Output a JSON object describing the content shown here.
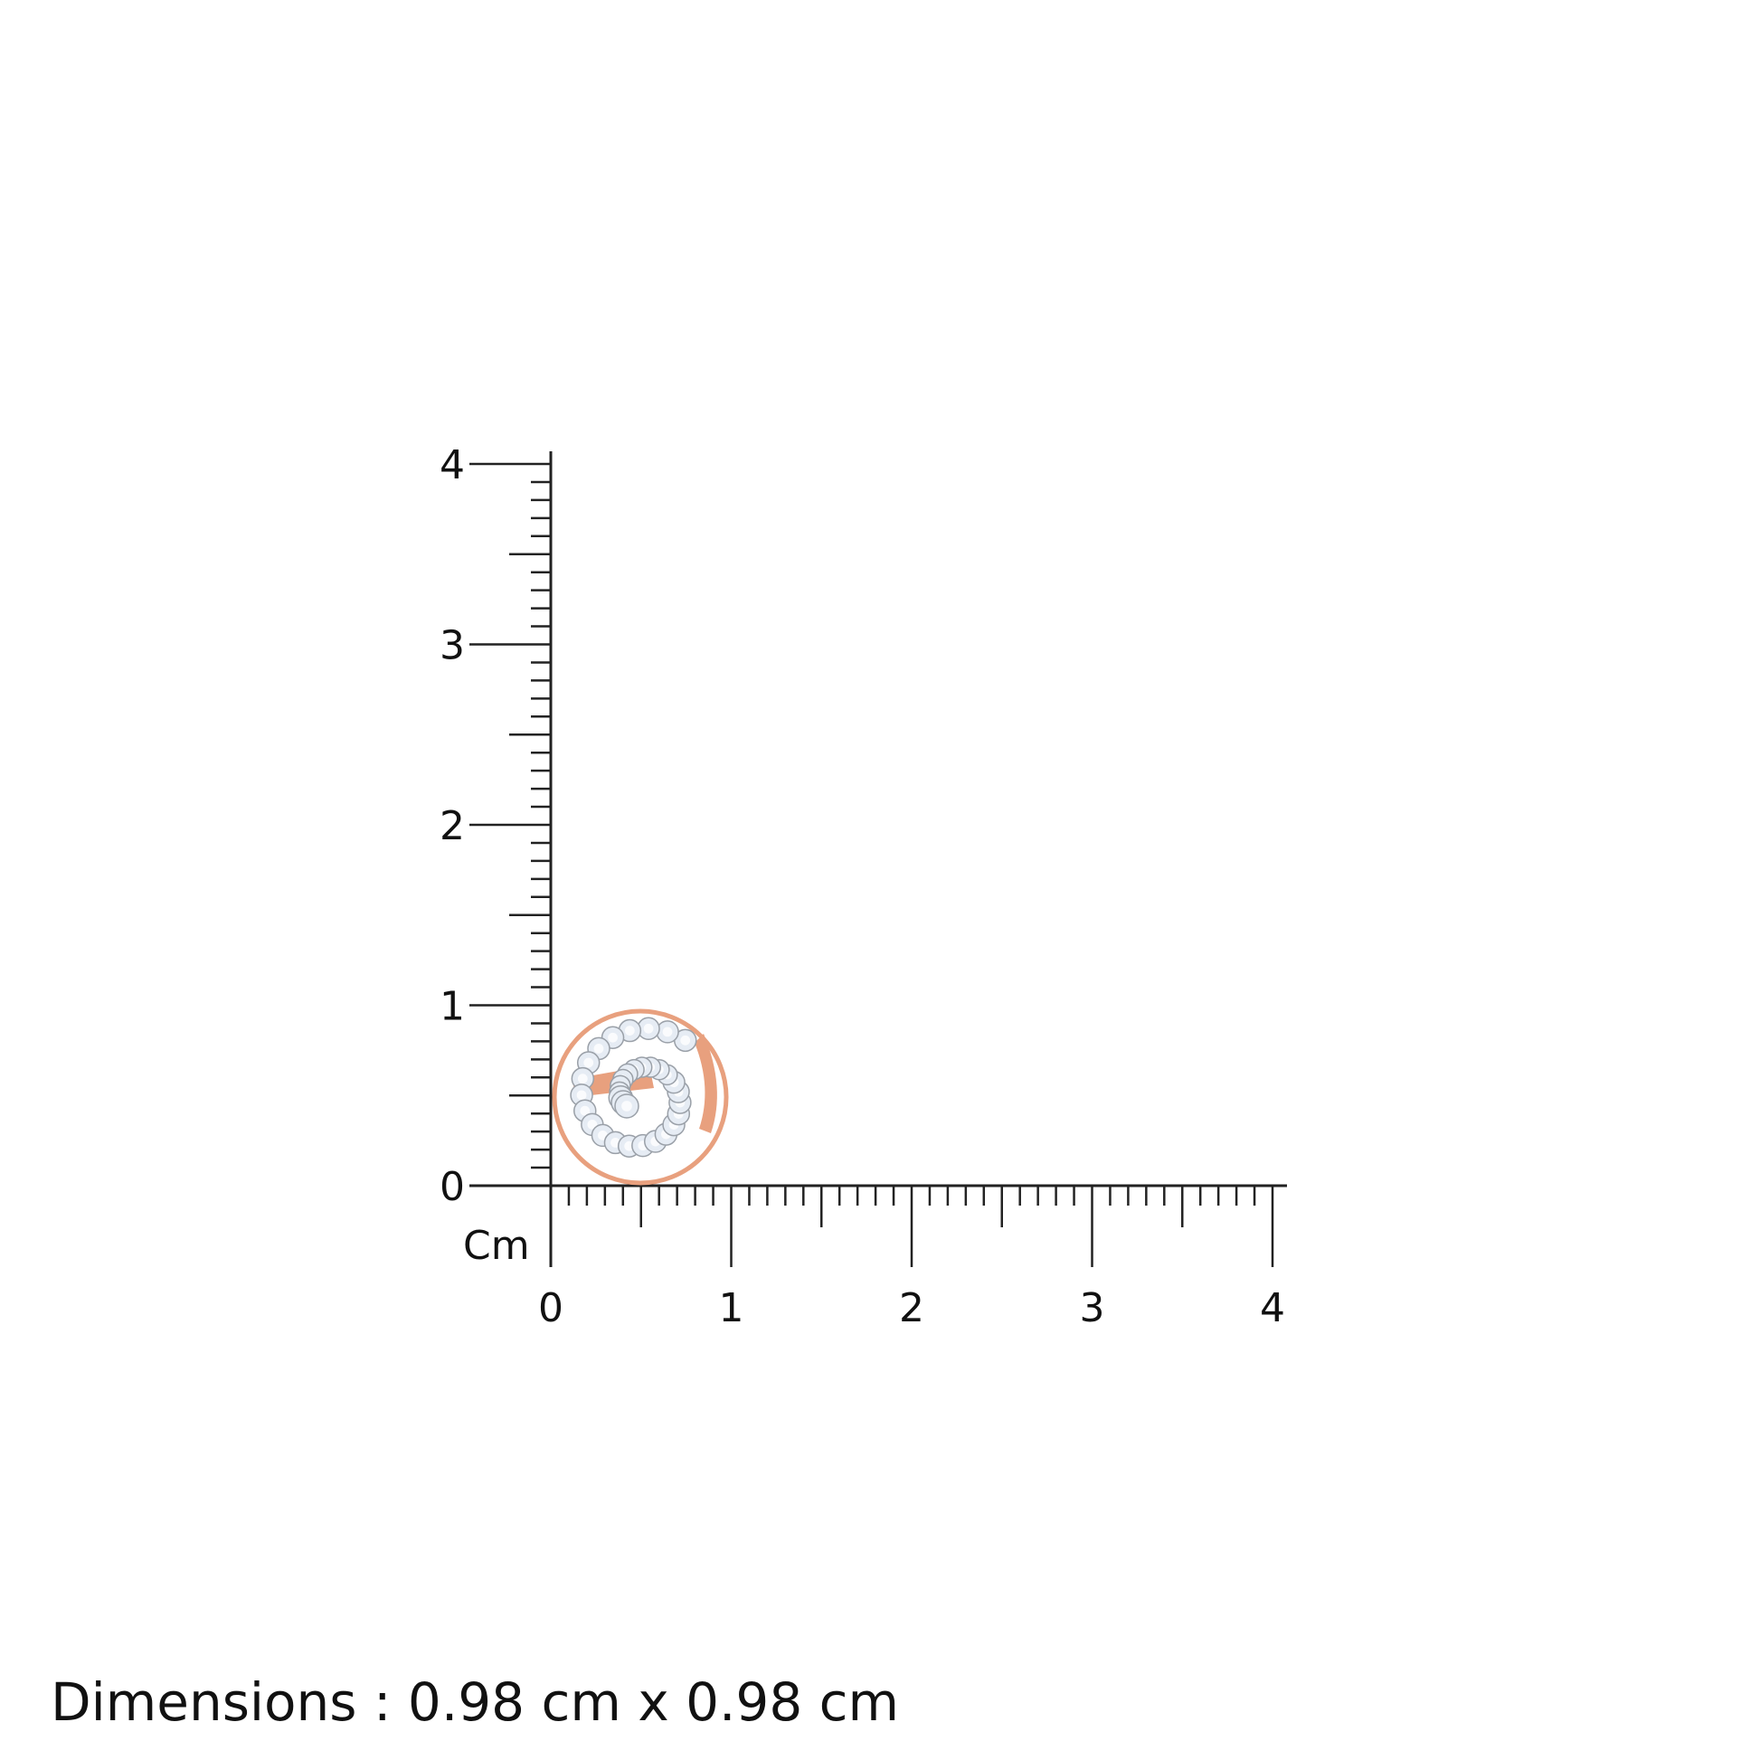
{
  "ruler": {
    "unit": "Cm",
    "x_labels": [
      "0",
      "1",
      "2",
      "3",
      "4"
    ],
    "y_labels": [
      "0",
      "1",
      "2",
      "3",
      "4"
    ],
    "range_cm": [
      0,
      4
    ],
    "minor_step_cm": 0.1,
    "color": "#222222"
  },
  "product": {
    "type": "spiral diamond stud earring",
    "metal_color": "#e8a07e",
    "stone_color": "#e6ecf4"
  },
  "caption": {
    "dimensions": "Dimensions : 0.98 cm x 0.98 cm"
  }
}
